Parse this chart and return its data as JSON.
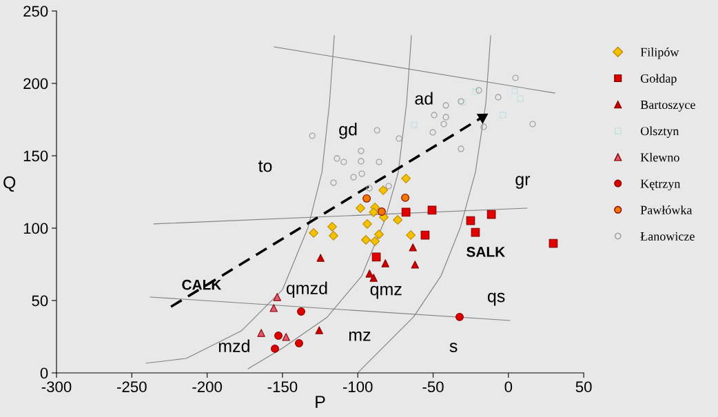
{
  "chart_data": {
    "type": "scatter",
    "xlabel": "P",
    "ylabel": "Q",
    "xlim": [
      -300,
      50
    ],
    "xticks": [
      -300,
      -250,
      -200,
      -150,
      -100,
      -50,
      0,
      50
    ],
    "ylim": [
      0,
      250
    ],
    "yticks": [
      0,
      50,
      100,
      150,
      200,
      250
    ],
    "grid": false,
    "legend": "right",
    "series": [
      {
        "name": "Filipów",
        "color": "#f2c200",
        "marker": "diamond",
        "x": [
          -68.0,
          -83.1,
          -98.2,
          -88.6,
          -89.5,
          -82.7,
          -73.5,
          -129.3,
          -117.0,
          -116.1,
          -93.7,
          -85.9,
          -94.6,
          -88.6,
          -64.8
        ],
        "values": [
          134.3,
          126.2,
          113.8,
          114.3,
          111.0,
          107.6,
          105.7,
          96.7,
          101.0,
          94.8,
          102.9,
          95.7,
          91.9,
          91.0,
          95.2
        ]
      },
      {
        "name": "Gołdap",
        "color": "#e00000",
        "marker": "square",
        "x": [
          -68.0,
          -50.7,
          -55.3,
          -87.7,
          -25.1,
          -21.9,
          -11.3,
          29.8
        ],
        "values": [
          111.0,
          112.4,
          95.2,
          80.0,
          105.2,
          97.1,
          109.5,
          89.5
        ]
      },
      {
        "name": "Bartoszyce",
        "color": "#cc0000",
        "marker": "triangle",
        "x": [
          -124.7,
          -63.4,
          -62.0,
          -81.7,
          -92.2,
          -89.5,
          -125.6
        ],
        "values": [
          79.5,
          86.7,
          74.8,
          75.7,
          68.6,
          65.7,
          29.5
        ]
      },
      {
        "name": "Olsztyn",
        "color": "#bfe0e0",
        "marker": "square",
        "x": [
          -21.9,
          -30.6,
          -62.6,
          4.2,
          7.9,
          -3.6
        ],
        "values": [
          194.3,
          187.1,
          171.4,
          194.8,
          189.5,
          178.1
        ]
      },
      {
        "name": "Klewno",
        "color": "#e05a70",
        "marker": "triangle",
        "x": [
          -153.5,
          -155.8,
          -164.1,
          -147.6
        ],
        "values": [
          52.4,
          44.8,
          27.6,
          24.8
        ]
      },
      {
        "name": "Kętrzyn",
        "color": "#dd0000",
        "marker": "circle",
        "x": [
          -137.6,
          -152.7,
          -155.0,
          -139.0,
          -32.4
        ],
        "values": [
          42.4,
          25.7,
          16.7,
          20.5,
          38.6
        ]
      },
      {
        "name": "Pawłówka",
        "color": "#f07800",
        "marker": "circle",
        "x": [
          -94.1,
          -68.5,
          -84.1
        ],
        "values": [
          120.5,
          121.0,
          111.4
        ]
      },
      {
        "name": "Łanowicze",
        "color": "#999999",
        "marker": "circle",
        "x": [
          -130.2,
          -87.2,
          -72.6,
          -97.8,
          -113.8,
          -109.3,
          -97.8,
          -85.9,
          -97.3,
          -102.8,
          -116.1,
          -92.3,
          -79.5,
          4.7,
          -19.6,
          -6.8,
          -31.5,
          -41.5,
          -49.3,
          -41.5,
          -42.9,
          -50.2,
          -16.4,
          16.1,
          -31.5
        ],
        "values": [
          163.8,
          167.6,
          161.9,
          153.3,
          148.1,
          145.7,
          146.2,
          145.7,
          137.6,
          135.2,
          131.4,
          127.6,
          129.0,
          203.8,
          195.2,
          190.5,
          187.6,
          184.8,
          178.1,
          176.7,
          171.9,
          166.2,
          170.0,
          171.9,
          154.8
        ]
      },
      {
        "type": "line",
        "color": "#808080",
        "x": [
          -155.5,
          30.8
        ],
        "values": [
          225.2,
          193.3
        ]
      },
      {
        "type": "line",
        "color": "#808080",
        "x": [
          -235.4,
          12.4
        ],
        "values": [
          102.9,
          113.8
        ]
      },
      {
        "type": "line",
        "color": "#808080",
        "x": [
          -237.7,
          1.0
        ],
        "values": [
          52.4,
          36.2
        ]
      },
      {
        "type": "line",
        "color": "#808080",
        "x": [
          -115.6,
          -118.8,
          -123.8,
          -133.0,
          -149.9,
          -177.3,
          -213.9,
          -240.5
        ],
        "values": [
          232.9,
          186.2,
          138.6,
          100.5,
          57.6,
          29.0,
          10.0,
          6.7
        ]
      },
      {
        "type": "line",
        "color": "#808080",
        "x": [
          -64.4,
          -67.6,
          -73.1,
          -82.2,
          -97.3,
          -120.2,
          -149.9,
          -172.8
        ],
        "values": [
          232.9,
          186.2,
          138.6,
          105.2,
          67.1,
          38.6,
          17.1,
          2.9
        ]
      },
      {
        "type": "line",
        "color": "#808080",
        "x": [
          -11.8,
          -15.0,
          -21.9,
          -31.9,
          -44.7,
          -63.0,
          -85.9,
          -99.6
        ],
        "values": [
          232.9,
          186.2,
          138.6,
          100.5,
          67.1,
          38.6,
          14.8,
          0.5
        ]
      },
      {
        "type": "line",
        "color": "#000000",
        "line_style": "dashed",
        "x": [
          -224.0,
          -17.2
        ],
        "values": [
          45.7,
          176.7
        ]
      }
    ],
    "annotations": [
      "to",
      "gd",
      "ad",
      "gr",
      "SALK",
      "CALK",
      "qmzd",
      "qmz",
      "qs",
      "mz",
      "s",
      "mzd"
    ]
  }
}
